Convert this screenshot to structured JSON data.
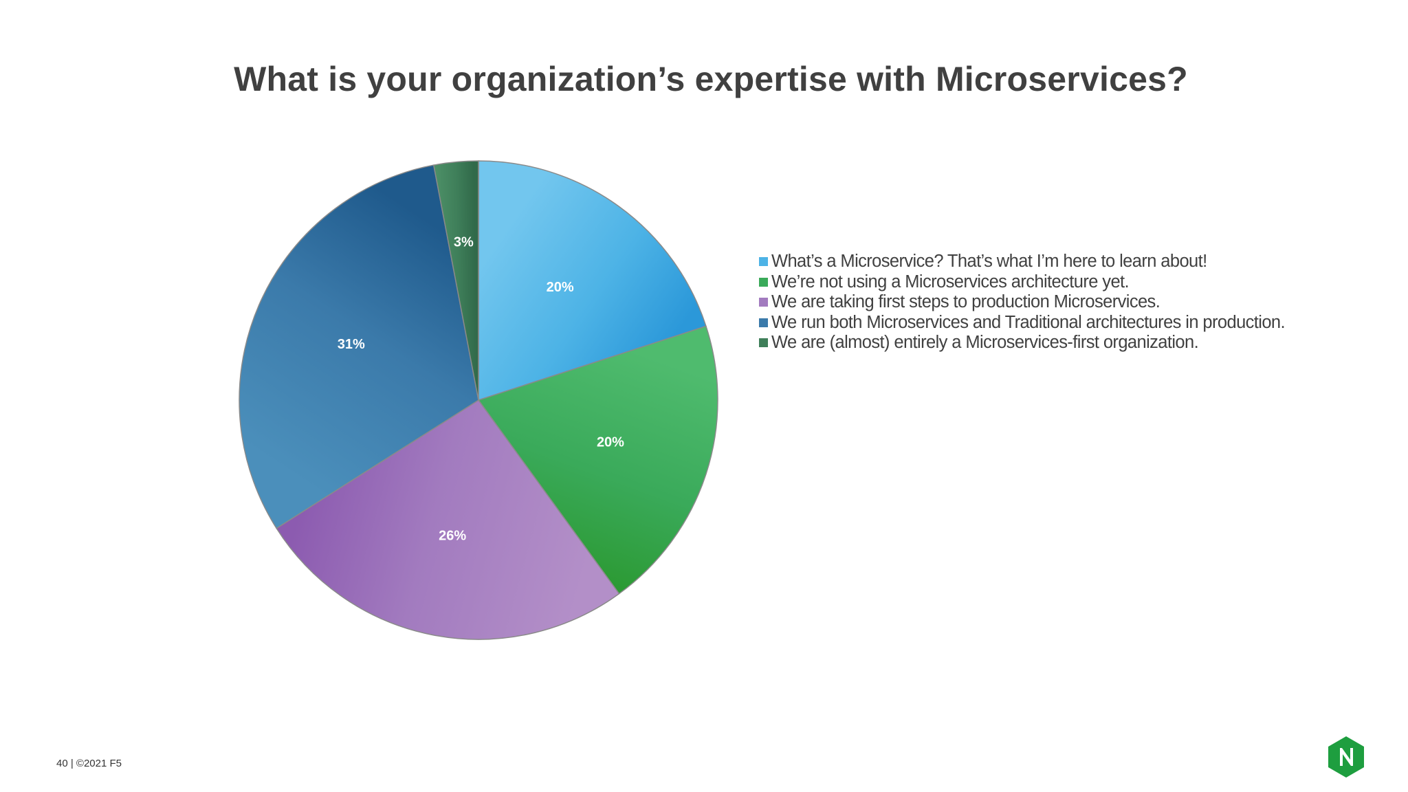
{
  "slide": {
    "title": "What is your organization’s expertise with Microservices?",
    "footer": "40 | ©2021 F5",
    "logo_letter": "N",
    "logo_color": "#1e9e3f"
  },
  "chart_data": {
    "type": "pie",
    "title": "What is your organization’s expertise with Microservices?",
    "legend_position": "right",
    "slices": [
      {
        "label": "What’s a Microservice?  That’s what I’m here to learn about!",
        "value": 20,
        "display": "20%",
        "color": "#4db3e6",
        "color_light": "#72c6ee",
        "color_dark": "#2b98d9"
      },
      {
        "label": "We’re not using a Microservices architecture yet.",
        "value": 20,
        "display": "20%",
        "color": "#3aaa5a",
        "color_light": "#4fbb6e",
        "color_dark": "#2c9a34"
      },
      {
        "label": "We are taking first steps to production Microservices.",
        "value": 26,
        "display": "26%",
        "color": "#a27bbf",
        "color_light": "#b38fc8",
        "color_dark": "#8c5bb0"
      },
      {
        "label": "We run both Microservices and Traditional architectures in production.",
        "value": 31,
        "display": "31%",
        "color": "#3b7aaa",
        "color_light": "#4b8fbb",
        "color_dark": "#1f5a8c"
      },
      {
        "label": "We are (almost) entirely a Microservices-first organization.",
        "value": 3,
        "display": "3%",
        "color": "#3f7f5a",
        "color_light": "#4d9067",
        "color_dark": "#316a4a"
      }
    ]
  }
}
